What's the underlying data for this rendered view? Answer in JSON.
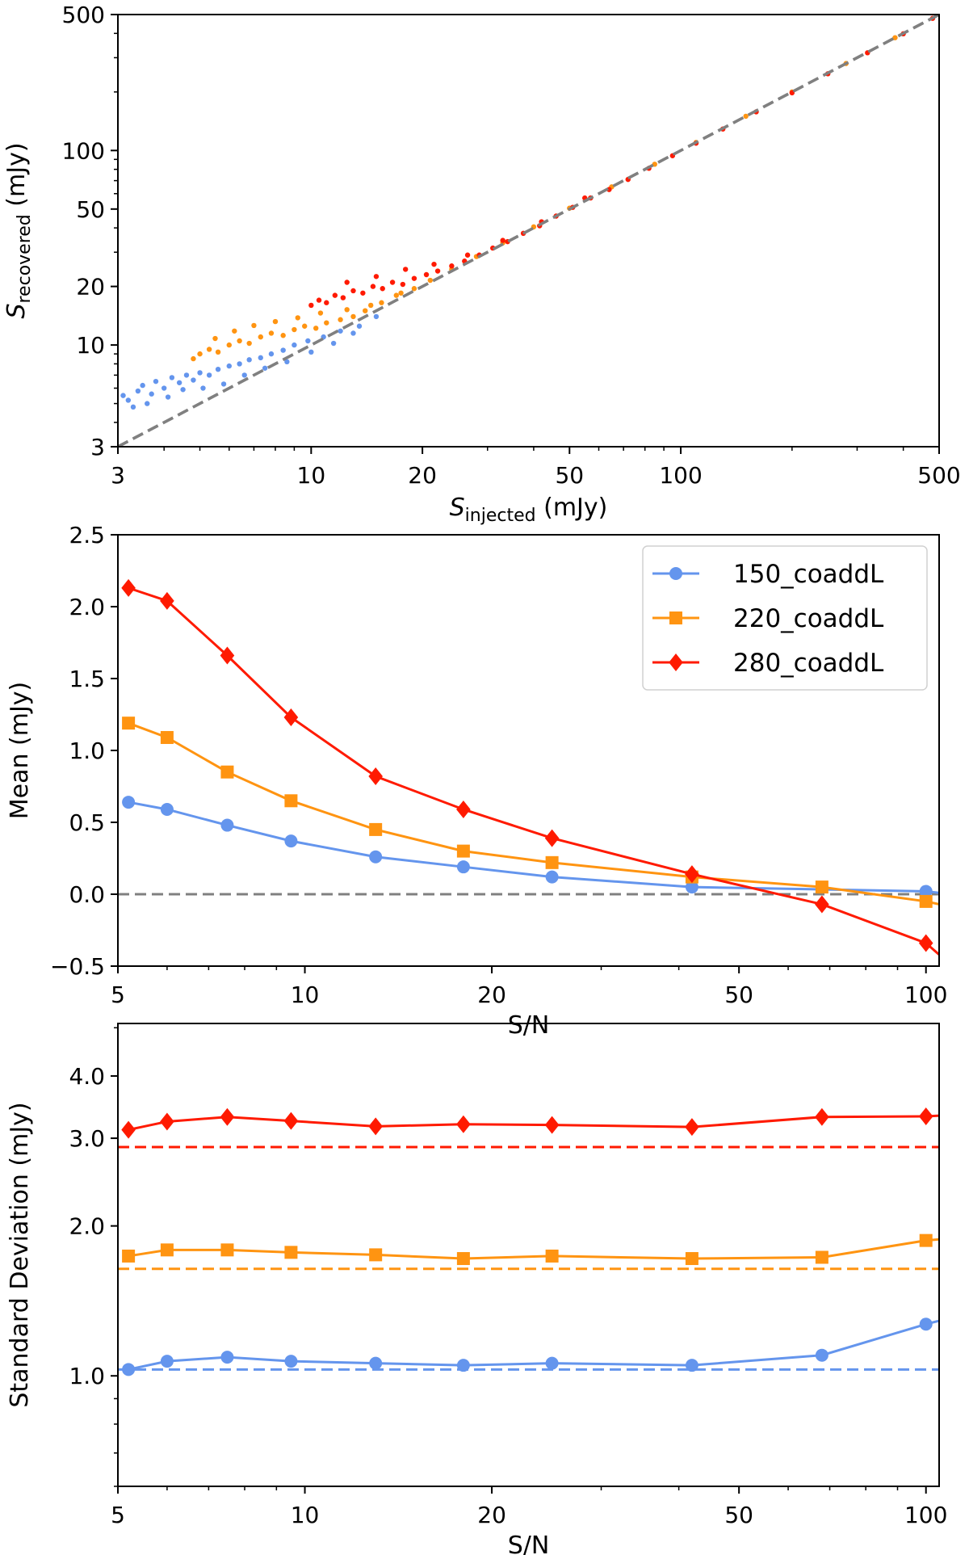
{
  "colors": {
    "blue": "#6495ED",
    "orange": "#FF9411",
    "red": "#FF1A00",
    "reference": "#808080",
    "axes": "#000000"
  },
  "chart_data": [
    {
      "type": "scatter",
      "xlabel": {
        "main": "S",
        "sub": "injected",
        "unit": " (mJy)"
      },
      "ylabel": {
        "main": "S",
        "sub": "recovered",
        "unit": " (mJy)"
      },
      "xscale": "log",
      "yscale": "log",
      "xlim": [
        3,
        500
      ],
      "ylim": [
        3,
        500
      ],
      "xticks": [
        {
          "value": 3,
          "label": "3"
        },
        {
          "value": 10,
          "label": "10"
        },
        {
          "value": 20,
          "label": "20"
        },
        {
          "value": 50,
          "label": "50"
        },
        {
          "value": 100,
          "label": "100"
        },
        {
          "value": 500,
          "label": "500"
        }
      ],
      "yticks": [
        {
          "value": 3,
          "label": "3"
        },
        {
          "value": 10,
          "label": "10"
        },
        {
          "value": 20,
          "label": "20"
        },
        {
          "value": 50,
          "label": "50"
        },
        {
          "value": 100,
          "label": "100"
        },
        {
          "value": 500,
          "label": "500"
        }
      ],
      "reference_line": {
        "style": "dashed",
        "color": "gray",
        "from": [
          3,
          3
        ],
        "to": [
          500,
          500
        ]
      },
      "series": [
        {
          "color": "blue",
          "x": [
            3.1,
            3.2,
            3.4,
            3.5,
            3.7,
            3.8,
            4.0,
            4.2,
            4.4,
            4.6,
            4.8,
            5.0,
            5.3,
            5.6,
            6.0,
            6.4,
            6.8,
            7.3,
            7.8,
            8.4,
            9.0,
            9.8,
            10.8,
            12.0,
            13.5,
            15.0,
            3.3,
            3.6,
            4.1,
            4.5,
            5.1,
            5.8,
            6.6,
            7.5,
            8.6,
            10.0,
            11.5,
            13.0
          ],
          "y": [
            5.5,
            5.2,
            5.8,
            6.2,
            5.6,
            6.5,
            6.0,
            6.8,
            6.4,
            7.0,
            6.6,
            7.2,
            7.0,
            7.5,
            7.8,
            8.0,
            8.4,
            8.6,
            9.0,
            9.4,
            10.0,
            10.5,
            11.0,
            11.8,
            12.5,
            14.0,
            4.8,
            5.0,
            5.4,
            5.9,
            6.0,
            6.3,
            7.0,
            7.6,
            8.2,
            9.2,
            10.2,
            11.5
          ]
        },
        {
          "color": "orange",
          "x": [
            4.8,
            5.0,
            5.3,
            5.6,
            6.0,
            6.4,
            6.8,
            7.3,
            7.8,
            8.4,
            9.0,
            9.6,
            10.3,
            11.0,
            12.0,
            13.0,
            14.0,
            15.5,
            17.0,
            19.0,
            21.0,
            24.0,
            28.0,
            33.0,
            40.0,
            50.0,
            65.0,
            85.0,
            110.0,
            150.0,
            200.0,
            280.0,
            380.0,
            5.5,
            6.2,
            7.0,
            8.0,
            9.2,
            10.6,
            12.5,
            14.5,
            17.5
          ],
          "y": [
            8.5,
            9.0,
            9.5,
            9.2,
            10.0,
            10.5,
            10.2,
            11.0,
            11.5,
            11.2,
            12.0,
            12.5,
            12.2,
            13.0,
            13.5,
            14.0,
            15.0,
            16.5,
            18.0,
            19.5,
            21.5,
            24.5,
            28.5,
            33.5,
            40.5,
            50.5,
            65.0,
            85.0,
            110.0,
            150.0,
            200.0,
            280.0,
            380.0,
            10.8,
            11.8,
            12.6,
            13.2,
            13.8,
            14.6,
            15.2,
            16.0,
            18.5
          ]
        },
        {
          "color": "red",
          "x": [
            10.0,
            10.5,
            11.0,
            11.6,
            12.2,
            13.0,
            13.8,
            14.7,
            15.6,
            16.6,
            17.7,
            19.0,
            20.5,
            22.0,
            24.0,
            26.0,
            28.5,
            31.0,
            34.0,
            37.5,
            41.5,
            46.0,
            51.0,
            57.0,
            64.0,
            72.0,
            82.0,
            95.0,
            110.0,
            130.0,
            160.0,
            200.0,
            250.0,
            320.0,
            400.0,
            480.0,
            12.5,
            15.0,
            18.0,
            21.5,
            26.5,
            33.0,
            42.0,
            55.0
          ],
          "y": [
            16.0,
            17.0,
            16.5,
            18.0,
            17.5,
            19.0,
            18.5,
            20.0,
            19.5,
            21.0,
            20.5,
            22.0,
            23.0,
            24.0,
            25.5,
            27.0,
            29.0,
            31.5,
            34.0,
            37.5,
            41.0,
            46.0,
            51.0,
            57.0,
            63.0,
            71.0,
            81.0,
            94.0,
            109.0,
            129.0,
            158.0,
            198.0,
            248.0,
            318.0,
            398.0,
            478.0,
            21.0,
            22.5,
            24.5,
            26.0,
            29.0,
            34.5,
            43.0,
            57.0
          ]
        }
      ]
    },
    {
      "type": "line",
      "xlabel": "S/N",
      "ylabel": "Mean (mJy)",
      "xscale": "log",
      "xlim": [
        5,
        105
      ],
      "ylim": [
        -0.5,
        2.5
      ],
      "xticks": [
        {
          "value": 5,
          "label": "5"
        },
        {
          "value": 10,
          "label": "10"
        },
        {
          "value": 20,
          "label": "20"
        },
        {
          "value": 50,
          "label": "50"
        },
        {
          "value": 100,
          "label": "100"
        }
      ],
      "yticks": [
        {
          "value": -0.5,
          "label": "−0.5"
        },
        {
          "value": 0.0,
          "label": "0.0"
        },
        {
          "value": 0.5,
          "label": "0.5"
        },
        {
          "value": 1.0,
          "label": "1.0"
        },
        {
          "value": 1.5,
          "label": "1.5"
        },
        {
          "value": 2.0,
          "label": "2.0"
        },
        {
          "value": 2.5,
          "label": "2.5"
        }
      ],
      "reference_line": {
        "style": "dashed",
        "color": "gray",
        "y": 0.0
      },
      "legend": {
        "placement": "top-right"
      },
      "series": [
        {
          "name": "150_coaddL",
          "color": "blue",
          "marker": "circle",
          "x": [
            5.2,
            6.0,
            7.5,
            9.5,
            13.0,
            18.0,
            25.0,
            42.0,
            100.0,
            105.0
          ],
          "y": [
            0.64,
            0.59,
            0.48,
            0.37,
            0.26,
            0.19,
            0.12,
            0.05,
            0.02,
            0.01
          ]
        },
        {
          "name": "220_coaddL",
          "color": "orange",
          "marker": "square",
          "x": [
            5.2,
            6.0,
            7.5,
            9.5,
            13.0,
            18.0,
            25.0,
            42.0,
            68.0,
            100.0,
            105.0
          ],
          "y": [
            1.19,
            1.09,
            0.85,
            0.65,
            0.45,
            0.3,
            0.22,
            0.12,
            0.05,
            -0.05,
            -0.07
          ]
        },
        {
          "name": "280_coaddL",
          "color": "red",
          "marker": "diamond",
          "x": [
            5.2,
            6.0,
            7.5,
            9.5,
            13.0,
            18.0,
            25.0,
            42.0,
            68.0,
            100.0,
            105.0
          ],
          "y": [
            2.13,
            2.04,
            1.66,
            1.23,
            0.82,
            0.59,
            0.39,
            0.14,
            -0.07,
            -0.34,
            -0.42
          ]
        }
      ]
    },
    {
      "type": "line",
      "xlabel": "S/N",
      "ylabel": "Standard Deviation (mJy)",
      "xscale": "log",
      "yscale": "log",
      "xlim": [
        5,
        105
      ],
      "ylim": [
        0.6,
        5.1
      ],
      "xticks": [
        {
          "value": 5,
          "label": "5"
        },
        {
          "value": 10,
          "label": "10"
        },
        {
          "value": 20,
          "label": "20"
        },
        {
          "value": 50,
          "label": "50"
        },
        {
          "value": 100,
          "label": "100"
        }
      ],
      "yticks": [
        {
          "value": 1.0,
          "label": "1.0"
        },
        {
          "value": 2.0,
          "label": "2.0"
        },
        {
          "value": 3.0,
          "label": "3.0"
        },
        {
          "value": 4.0,
          "label": "4.0"
        }
      ],
      "minor_yticks": [
        0.6,
        0.7,
        0.8,
        0.9,
        5.0
      ],
      "series": [
        {
          "name": "150_coaddL",
          "color": "blue",
          "marker": "circle",
          "x": [
            5.2,
            6.0,
            7.5,
            9.5,
            13.0,
            18.0,
            25.0,
            42.0,
            68.0,
            100.0,
            105.0
          ],
          "y": [
            1.03,
            1.07,
            1.09,
            1.07,
            1.06,
            1.05,
            1.06,
            1.05,
            1.1,
            1.27,
            1.29
          ],
          "reference": 1.03
        },
        {
          "name": "220_coaddL",
          "color": "orange",
          "marker": "square",
          "x": [
            5.2,
            6.0,
            7.5,
            9.5,
            13.0,
            18.0,
            25.0,
            42.0,
            68.0,
            100.0,
            105.0
          ],
          "y": [
            1.74,
            1.79,
            1.79,
            1.77,
            1.75,
            1.72,
            1.74,
            1.72,
            1.73,
            1.87,
            1.88
          ],
          "reference": 1.64
        },
        {
          "name": "280_coaddL",
          "color": "red",
          "marker": "diamond",
          "x": [
            5.2,
            6.0,
            7.5,
            9.5,
            13.0,
            18.0,
            25.0,
            42.0,
            68.0,
            100.0,
            105.0
          ],
          "y": [
            3.12,
            3.24,
            3.31,
            3.25,
            3.17,
            3.2,
            3.19,
            3.16,
            3.31,
            3.32,
            3.33
          ],
          "reference": 2.88
        }
      ]
    }
  ]
}
